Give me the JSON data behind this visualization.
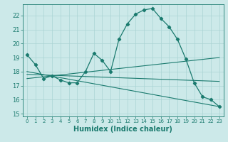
{
  "xlabel": "Humidex (Indice chaleur)",
  "xlim": [
    -0.5,
    23.5
  ],
  "ylim": [
    14.8,
    22.8
  ],
  "yticks": [
    15,
    16,
    17,
    18,
    19,
    20,
    21,
    22
  ],
  "xticks": [
    0,
    1,
    2,
    3,
    4,
    5,
    6,
    7,
    8,
    9,
    10,
    11,
    12,
    13,
    14,
    15,
    16,
    17,
    18,
    19,
    20,
    21,
    22,
    23
  ],
  "bg_color": "#cce9e9",
  "line_color": "#1a7a6e",
  "grid_color": "#aad4d4",
  "main_curve_x": [
    0,
    1,
    2,
    3,
    4,
    5,
    6,
    7,
    8,
    9,
    10,
    11,
    12,
    13,
    14,
    15,
    16,
    17,
    18,
    19,
    20,
    21,
    22,
    23
  ],
  "main_curve_y": [
    19.2,
    18.5,
    17.5,
    17.7,
    17.4,
    17.2,
    17.2,
    18.0,
    19.3,
    18.8,
    18.0,
    20.3,
    21.4,
    22.1,
    22.4,
    22.5,
    21.8,
    21.2,
    20.3,
    18.9,
    17.2,
    16.2,
    16.0,
    15.5
  ],
  "trend1_x": [
    0,
    23
  ],
  "trend1_y": [
    18.0,
    15.5
  ],
  "trend2_x": [
    0,
    23
  ],
  "trend2_y": [
    17.5,
    19.0
  ],
  "trend3_x": [
    0,
    23
  ],
  "trend3_y": [
    17.8,
    17.3
  ],
  "font_size_xlabel": 7,
  "font_size_ticks": 6
}
